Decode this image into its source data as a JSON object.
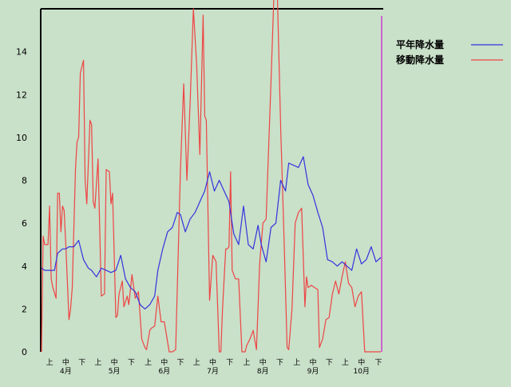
{
  "chart_data": {
    "type": "line",
    "title": "",
    "xlabel": "",
    "ylabel": "",
    "ylim": [
      0,
      16
    ],
    "y_ticks": [
      0,
      2,
      4,
      6,
      8,
      10,
      12,
      14
    ],
    "x_unit": "day index (Apr 1 = 0)",
    "xlim": [
      0,
      210
    ],
    "period_labels": [
      "上",
      "中",
      "下"
    ],
    "months": [
      "4月",
      "5月",
      "6月",
      "7月",
      "8月",
      "9月",
      "10月"
    ],
    "grid": false,
    "legend_position": "top-right",
    "colors": {
      "background": "#c9e0c9",
      "normal": "#3333dd",
      "moving": "#ee4444",
      "marker_line": "#cc66cc",
      "frame": "#000000"
    },
    "series": [
      {
        "name": "平年降水量",
        "color": "#3333dd",
        "x": [
          0,
          2,
          5,
          8,
          10,
          13,
          15,
          17,
          20,
          23,
          26,
          29,
          31,
          34,
          37,
          40,
          43,
          46,
          49,
          52,
          55,
          58,
          61,
          64,
          67,
          70,
          72,
          75,
          78,
          81,
          84,
          86,
          89,
          92,
          95,
          98,
          101,
          104,
          107,
          110,
          113,
          116,
          119,
          122,
          125,
          128,
          131,
          134,
          136,
          139,
          142,
          145,
          148,
          151,
          153,
          156,
          159,
          162,
          165,
          168,
          171,
          174,
          177,
          180,
          183,
          186,
          189,
          192,
          195,
          198,
          201,
          204,
          207,
          210
        ],
        "values": [
          3.9,
          3.8,
          3.8,
          3.8,
          4.6,
          4.8,
          4.8,
          4.9,
          4.9,
          5.2,
          4.3,
          3.9,
          3.8,
          3.5,
          3.9,
          3.8,
          3.7,
          3.8,
          4.5,
          3.4,
          3.0,
          2.8,
          2.2,
          2.0,
          2.2,
          2.6,
          3.8,
          4.8,
          5.6,
          5.8,
          6.5,
          6.4,
          5.6,
          6.2,
          6.5,
          7.0,
          7.5,
          8.4,
          7.5,
          8.0,
          7.5,
          7.0,
          5.5,
          5.0,
          6.8,
          5.0,
          4.8,
          5.9,
          5.0,
          4.2,
          5.8,
          6.0,
          8.0,
          7.5,
          8.8,
          8.7,
          8.6,
          9.1,
          7.8,
          7.3,
          6.5,
          5.8,
          4.3,
          4.2,
          4.0,
          4.2,
          4.0,
          3.8,
          4.8,
          4.1,
          4.3,
          4.9,
          4.2,
          4.4
        ]
      },
      {
        "name": "移動降水量",
        "color": "#ee4444",
        "x": [
          0,
          1,
          2,
          4,
          5,
          6,
          7,
          9,
          10,
          11,
          12,
          13,
          14,
          15,
          17,
          18,
          19,
          21,
          22,
          23,
          24,
          26,
          27,
          28,
          30,
          31,
          32,
          33,
          35,
          37,
          39,
          40,
          42,
          43,
          44,
          46,
          47,
          48,
          50,
          51,
          53,
          54,
          56,
          58,
          60,
          62,
          64,
          65,
          67,
          68,
          70,
          72,
          74,
          76,
          79,
          81,
          83,
          86,
          88,
          90,
          92,
          94,
          96,
          98,
          100,
          101,
          102,
          104,
          106,
          108,
          110,
          111,
          112,
          114,
          115,
          116,
          117,
          118,
          120,
          122,
          124,
          126,
          127,
          129,
          130,
          131,
          133,
          135,
          137,
          139,
          142,
          144,
          146,
          148,
          150,
          152,
          153,
          155,
          157,
          159,
          161,
          163,
          164,
          165,
          167,
          169,
          171,
          172,
          174,
          176,
          178,
          180,
          182,
          184,
          186,
          188,
          190,
          192,
          194,
          196,
          198,
          200,
          202,
          204,
          206,
          208,
          210
        ],
        "values": [
          0,
          5.4,
          5.0,
          5.0,
          6.8,
          3.4,
          3.0,
          2.5,
          7.4,
          7.4,
          5.6,
          6.8,
          6.6,
          5.0,
          1.5,
          2.0,
          3.0,
          8.5,
          9.8,
          10.0,
          13.0,
          13.6,
          8.0,
          6.9,
          10.8,
          10.6,
          7.0,
          6.7,
          9.0,
          2.6,
          2.7,
          8.5,
          8.4,
          6.9,
          7.4,
          1.6,
          1.7,
          2.7,
          3.3,
          2.1,
          2.6,
          2.2,
          3.6,
          2.5,
          2.8,
          0.6,
          0.2,
          0.1,
          1.0,
          1.1,
          1.2,
          2.6,
          1.4,
          1.4,
          0.0,
          0.0,
          0.1,
          8.5,
          12.5,
          8.0,
          11.7,
          16.0,
          13.4,
          9.2,
          15.7,
          11.0,
          10.8,
          2.4,
          4.5,
          4.2,
          0.0,
          0.0,
          2.0,
          4.8,
          4.8,
          4.9,
          8.4,
          3.8,
          3.4,
          3.4,
          0.0,
          0.0,
          0.3,
          0.6,
          0.8,
          1.0,
          0.1,
          4.1,
          6.0,
          6.2,
          12.6,
          17.0,
          16.5,
          10.5,
          5.5,
          0.2,
          0.1,
          2.0,
          6.0,
          6.5,
          6.7,
          2.1,
          3.5,
          3.0,
          3.1,
          3.0,
          2.9,
          0.2,
          0.6,
          1.5,
          1.6,
          2.7,
          3.3,
          2.7,
          3.5,
          4.2,
          3.2,
          3.0,
          2.1,
          2.6,
          2.8,
          0.0,
          0.0,
          0.0,
          0.0,
          0.0,
          0.0
        ]
      }
    ]
  }
}
